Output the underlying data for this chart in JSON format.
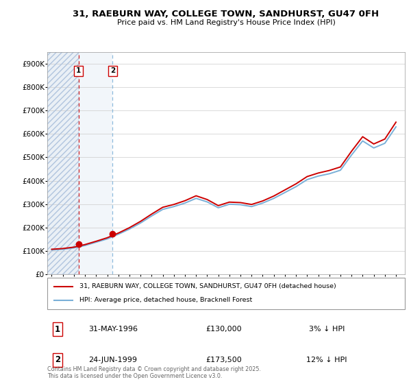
{
  "title": "31, RAEBURN WAY, COLLEGE TOWN, SANDHURST, GU47 0FH",
  "subtitle": "Price paid vs. HM Land Registry's House Price Index (HPI)",
  "ylim": [
    0,
    950000
  ],
  "yticks": [
    0,
    100000,
    200000,
    300000,
    400000,
    500000,
    600000,
    700000,
    800000,
    900000
  ],
  "ytick_labels": [
    "£0",
    "£100K",
    "£200K",
    "£300K",
    "£400K",
    "£500K",
    "£600K",
    "£700K",
    "£800K",
    "£900K"
  ],
  "hpi_color": "#7ab0d8",
  "price_color": "#cc0000",
  "vline1_color": "#cc0000",
  "vline2_color": "#7ab0d8",
  "transaction1": {
    "date": 1996.41,
    "price": 130000,
    "label": "1"
  },
  "transaction2": {
    "date": 1999.48,
    "price": 173500,
    "label": "2"
  },
  "legend_line1": "31, RAEBURN WAY, COLLEGE TOWN, SANDHURST, GU47 0FH (detached house)",
  "legend_line2": "HPI: Average price, detached house, Bracknell Forest",
  "table_rows": [
    {
      "num": "1",
      "date": "31-MAY-1996",
      "price": "£130,000",
      "hpi": "3% ↓ HPI"
    },
    {
      "num": "2",
      "date": "24-JUN-1999",
      "price": "£173,500",
      "hpi": "12% ↓ HPI"
    }
  ],
  "footer": "Contains HM Land Registry data © Crown copyright and database right 2025.\nThis data is licensed under the Open Government Licence v3.0.",
  "hatch_color": "#dce6f1",
  "hpi_data_years": [
    1994,
    1995,
    1996,
    1997,
    1998,
    1999,
    2000,
    2001,
    2002,
    2003,
    2004,
    2005,
    2006,
    2007,
    2008,
    2009,
    2010,
    2011,
    2012,
    2013,
    2014,
    2015,
    2016,
    2017,
    2018,
    2019,
    2020,
    2021,
    2022,
    2023,
    2024,
    2025
  ],
  "hpi_data_vals": [
    105000,
    108000,
    114000,
    124000,
    138000,
    152000,
    172000,
    194000,
    220000,
    250000,
    278000,
    290000,
    305000,
    325000,
    310000,
    285000,
    300000,
    298000,
    290000,
    305000,
    325000,
    350000,
    375000,
    405000,
    420000,
    430000,
    445000,
    510000,
    570000,
    540000,
    560000,
    630000
  ],
  "price_data_years": [
    1994,
    1995,
    1996,
    1997,
    1998,
    1999,
    2000,
    2001,
    2002,
    2003,
    2004,
    2005,
    2006,
    2007,
    2008,
    2009,
    2010,
    2011,
    2012,
    2013,
    2014,
    2015,
    2016,
    2017,
    2018,
    2019,
    2020,
    2021,
    2022,
    2023,
    2024,
    2025
  ],
  "price_data_vals": [
    108000,
    111000,
    117000,
    128000,
    142000,
    157000,
    177000,
    200000,
    227000,
    258000,
    287000,
    299000,
    315000,
    336000,
    320000,
    294000,
    309000,
    307000,
    299000,
    314000,
    335000,
    361000,
    387000,
    418000,
    433000,
    444000,
    459000,
    526000,
    588000,
    557000,
    578000,
    650000
  ]
}
